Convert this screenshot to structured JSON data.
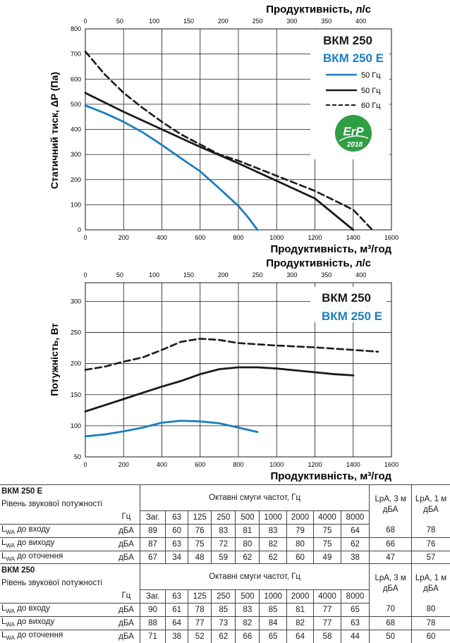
{
  "colors": {
    "line_50hz": "#1a7fc1",
    "line_60hz": "#1a1a1a",
    "erp_badge": "#2f9e45",
    "model_e": "#1a7fc1",
    "grid": "#1a1a1a"
  },
  "chart_data": [
    {
      "type": "line",
      "xlabel": "Продуктивність, м³/год",
      "x2label": "Продуктивність, л/с",
      "ylabel": "Статичний тиск, ΔP (Па)",
      "xlim": [
        0,
        1600
      ],
      "ylim": [
        0,
        800
      ],
      "x_ticks": [
        0,
        200,
        400,
        600,
        800,
        1000,
        1200,
        1400,
        1600
      ],
      "x2_ticks": [
        0,
        50,
        100,
        150,
        200,
        250,
        300,
        350,
        400
      ],
      "y_ticks": [
        0,
        100,
        200,
        300,
        400,
        500,
        600,
        700,
        800
      ],
      "grid": true,
      "legend_position": "top-right",
      "model_labels": [
        "ВКМ 250",
        "ВКМ 250 Е"
      ],
      "badge": {
        "top": "ErP",
        "bottom": "2018"
      },
      "series": [
        {
          "name": "50 Гц",
          "style": "solid-blue",
          "points": [
            [
              0,
              495
            ],
            [
              100,
              465
            ],
            [
              200,
              430
            ],
            [
              300,
              388
            ],
            [
              400,
              338
            ],
            [
              500,
              285
            ],
            [
              600,
              233
            ],
            [
              700,
              165
            ],
            [
              800,
              95
            ],
            [
              850,
              50
            ],
            [
              900,
              0
            ]
          ]
        },
        {
          "name": "50 Гц",
          "style": "solid-black",
          "points": [
            [
              0,
              545
            ],
            [
              200,
              470
            ],
            [
              400,
              400
            ],
            [
              600,
              330
            ],
            [
              800,
              265
            ],
            [
              1000,
              195
            ],
            [
              1200,
              125
            ],
            [
              1400,
              0
            ]
          ]
        },
        {
          "name": "60 Гц",
          "style": "dashed-black",
          "points": [
            [
              0,
              710
            ],
            [
              100,
              620
            ],
            [
              200,
              545
            ],
            [
              300,
              485
            ],
            [
              400,
              430
            ],
            [
              500,
              380
            ],
            [
              600,
              340
            ],
            [
              700,
              300
            ],
            [
              800,
              275
            ],
            [
              900,
              245
            ],
            [
              1000,
              215
            ],
            [
              1200,
              155
            ],
            [
              1400,
              80
            ],
            [
              1500,
              0
            ]
          ]
        }
      ]
    },
    {
      "type": "line",
      "xlabel": "Продуктивність, м³/год",
      "x2label": "Продуктивність, л/с",
      "ylabel": "Потужність, Вт",
      "xlim": [
        0,
        1600
      ],
      "ylim": [
        50,
        330
      ],
      "x_ticks": [
        0,
        200,
        400,
        600,
        800,
        1000,
        1200,
        1400,
        1600
      ],
      "x2_ticks": [
        0,
        50,
        100,
        150,
        200,
        250,
        300,
        350,
        400
      ],
      "y_ticks": [
        50,
        100,
        150,
        200,
        250,
        300
      ],
      "grid": true,
      "model_labels": [
        "ВКМ 250",
        "ВКМ 250 Е"
      ],
      "series": [
        {
          "style": "dashed-black",
          "points": [
            [
              0,
              190
            ],
            [
              100,
              195
            ],
            [
              200,
              203
            ],
            [
              300,
              210
            ],
            [
              400,
              222
            ],
            [
              500,
              235
            ],
            [
              600,
              240
            ],
            [
              700,
              238
            ],
            [
              800,
              233
            ],
            [
              1000,
              229
            ],
            [
              1200,
              226
            ],
            [
              1400,
              222
            ],
            [
              1530,
              219
            ]
          ]
        },
        {
          "style": "solid-black",
          "points": [
            [
              0,
              123
            ],
            [
              100,
              133
            ],
            [
              200,
              143
            ],
            [
              300,
              153
            ],
            [
              400,
              163
            ],
            [
              500,
              172
            ],
            [
              600,
              183
            ],
            [
              700,
              191
            ],
            [
              800,
              194
            ],
            [
              900,
              194
            ],
            [
              1000,
              192
            ],
            [
              1100,
              189
            ],
            [
              1200,
              186
            ],
            [
              1300,
              183
            ],
            [
              1400,
              181
            ]
          ]
        },
        {
          "style": "solid-blue",
          "points": [
            [
              0,
              83
            ],
            [
              100,
              86
            ],
            [
              200,
              91
            ],
            [
              300,
              97
            ],
            [
              400,
              105
            ],
            [
              500,
              108
            ],
            [
              600,
              107
            ],
            [
              700,
              104
            ],
            [
              800,
              97
            ],
            [
              900,
              90
            ]
          ]
        }
      ]
    }
  ],
  "tables": [
    {
      "title": "ВКМ 250 Е",
      "subtitle": "Рівень звукової потужності",
      "band_header": "Октавні смуги частот, Гц",
      "hz": "Гц",
      "cols": [
        "Заг.",
        "63",
        "125",
        "250",
        "500",
        "1000",
        "2000",
        "4000",
        "8000"
      ],
      "lpa3": "LpA, 3 м дБА",
      "lpa1": "LpA, 1 м дБА",
      "rows": [
        {
          "lw": "L",
          "sub": "WA",
          "label": " до входу",
          "unit": "дБА",
          "values": [
            "89",
            "60",
            "76",
            "83",
            "81",
            "83",
            "79",
            "75",
            "64"
          ],
          "lpa3": "68",
          "lpa1": "78"
        },
        {
          "lw": "L",
          "sub": "WA",
          "label": " до виходу",
          "unit": "дБА",
          "values": [
            "87",
            "63",
            "75",
            "72",
            "80",
            "82",
            "80",
            "75",
            "62"
          ],
          "lpa3": "66",
          "lpa1": "76"
        },
        {
          "lw": "L",
          "sub": "WA",
          "label": " до оточення",
          "unit": "дБА",
          "values": [
            "67",
            "34",
            "48",
            "59",
            "62",
            "62",
            "60",
            "49",
            "38"
          ],
          "lpa3": "47",
          "lpa1": "57"
        }
      ]
    },
    {
      "title": "ВКМ 250",
      "subtitle": "Рівень звукової потужності",
      "band_header": "Октавні смуги частот, Гц",
      "hz": "Гц",
      "cols": [
        "Заг.",
        "63",
        "125",
        "250",
        "500",
        "1000",
        "2000",
        "4000",
        "8000"
      ],
      "lpa3": "LpA, 3 м дБА",
      "lpa1": "LpA, 1 м дБА",
      "rows": [
        {
          "lw": "L",
          "sub": "WA",
          "label": " до входу",
          "unit": "дБА",
          "values": [
            "90",
            "61",
            "78",
            "85",
            "83",
            "85",
            "81",
            "77",
            "65"
          ],
          "lpa3": "70",
          "lpa1": "80"
        },
        {
          "lw": "L",
          "sub": "WA",
          "label": " до виходу",
          "unit": "дБА",
          "values": [
            "88",
            "64",
            "77",
            "73",
            "82",
            "84",
            "82",
            "77",
            "63"
          ],
          "lpa3": "68",
          "lpa1": "78"
        },
        {
          "lw": "L",
          "sub": "WA",
          "label": " до оточення",
          "unit": "дБА",
          "values": [
            "71",
            "38",
            "52",
            "62",
            "66",
            "65",
            "64",
            "58",
            "44"
          ],
          "lpa3": "50",
          "lpa1": "60"
        }
      ]
    }
  ]
}
